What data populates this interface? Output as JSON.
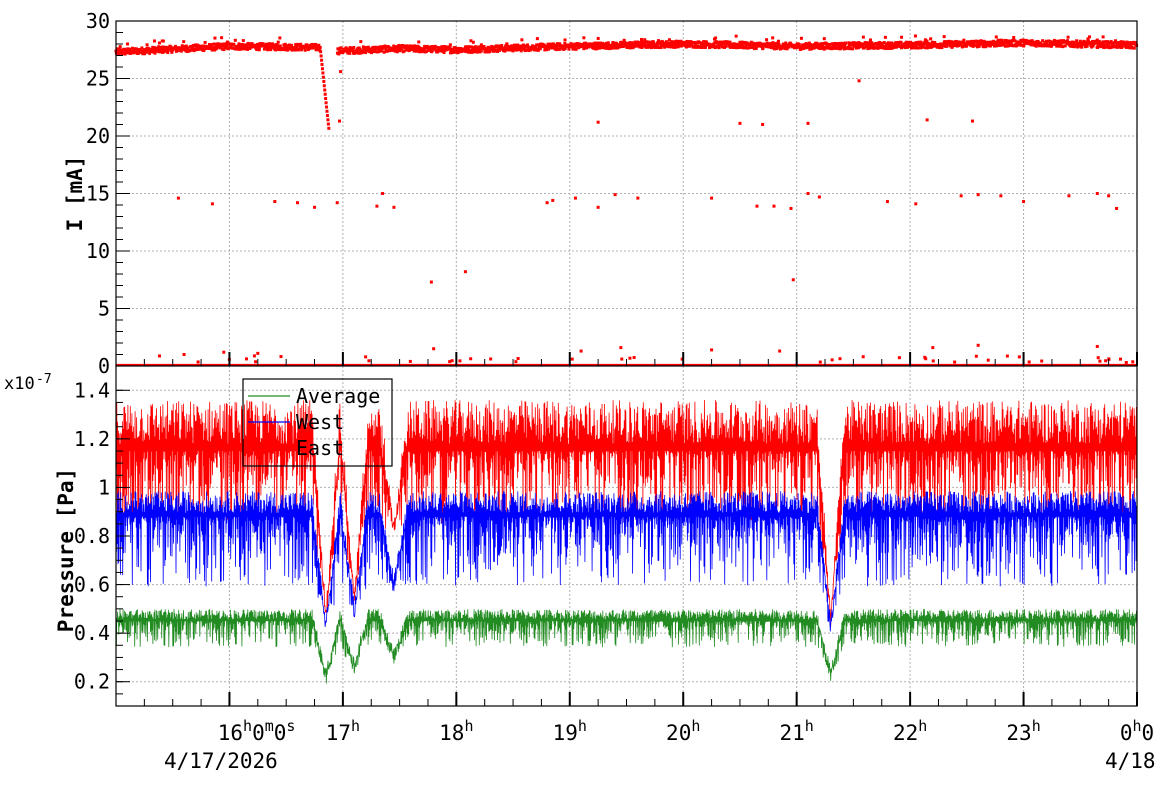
{
  "chart_data": [
    {
      "type": "scatter",
      "title": "",
      "xlabel": "",
      "ylabel": "I [mA]",
      "ylim": [
        0,
        30
      ],
      "yticks": [
        0,
        5,
        10,
        15,
        20,
        25,
        30
      ],
      "xlim_hours": [
        15.0,
        24.0
      ],
      "grid": true,
      "series": [
        {
          "color": "#ff0000",
          "baseline_points": [
            [
              15.0,
              27.3
            ],
            [
              16.0,
              27.8
            ],
            [
              16.8,
              27.7
            ],
            [
              16.88,
              20.3
            ],
            [
              16.95,
              27.4
            ],
            [
              17.5,
              27.6
            ],
            [
              18.0,
              27.5
            ],
            [
              19.0,
              27.8
            ],
            [
              20.0,
              28.0
            ],
            [
              21.0,
              27.8
            ],
            [
              22.0,
              27.9
            ],
            [
              23.0,
              28.1
            ],
            [
              24.0,
              27.9
            ]
          ],
          "outlier_points": [
            [
              15.55,
              14.6
            ],
            [
              15.85,
              14.1
            ],
            [
              16.4,
              14.3
            ],
            [
              16.6,
              14.2
            ],
            [
              16.75,
              13.8
            ],
            [
              16.95,
              14.2
            ],
            [
              17.3,
              13.9
            ],
            [
              17.35,
              15.0
            ],
            [
              17.45,
              13.8
            ],
            [
              18.8,
              14.2
            ],
            [
              18.85,
              14.4
            ],
            [
              19.05,
              14.6
            ],
            [
              19.25,
              13.8
            ],
            [
              19.4,
              14.9
            ],
            [
              19.6,
              14.6
            ],
            [
              20.25,
              14.6
            ],
            [
              20.65,
              13.9
            ],
            [
              20.8,
              13.9
            ],
            [
              20.95,
              13.7
            ],
            [
              21.1,
              15.0
            ],
            [
              21.2,
              14.7
            ],
            [
              21.8,
              14.3
            ],
            [
              22.05,
              14.1
            ],
            [
              22.45,
              14.8
            ],
            [
              22.6,
              14.9
            ],
            [
              22.8,
              14.8
            ],
            [
              23.0,
              14.3
            ],
            [
              23.4,
              14.8
            ],
            [
              23.65,
              15.0
            ],
            [
              23.75,
              14.8
            ],
            [
              23.82,
              13.7
            ],
            [
              16.97,
              21.3
            ],
            [
              19.25,
              21.2
            ],
            [
              20.5,
              21.1
            ],
            [
              20.7,
              21.0
            ],
            [
              21.1,
              21.1
            ],
            [
              22.15,
              21.4
            ],
            [
              22.55,
              21.3
            ],
            [
              16.98,
              25.6
            ],
            [
              21.55,
              24.8
            ],
            [
              17.78,
              7.3
            ],
            [
              18.08,
              8.2
            ],
            [
              20.97,
              7.5
            ],
            [
              15.6,
              1.0
            ],
            [
              15.95,
              1.2
            ],
            [
              16.25,
              1.1
            ],
            [
              17.8,
              1.5
            ],
            [
              19.1,
              1.3
            ],
            [
              19.45,
              1.6
            ],
            [
              20.25,
              1.4
            ],
            [
              20.85,
              1.3
            ],
            [
              22.2,
              1.6
            ],
            [
              22.6,
              1.8
            ],
            [
              23.65,
              1.7
            ]
          ]
        }
      ]
    },
    {
      "type": "line",
      "title": "",
      "xlabel": "",
      "ylabel": "Pressure [Pa]",
      "y_multiplier": "x10",
      "y_multiplier_exp": "-7",
      "ylim": [
        0.1,
        1.5
      ],
      "yticks": [
        0.2,
        0.4,
        0.6,
        0.8,
        1.0,
        1.2,
        1.4
      ],
      "ytick_labels": [
        "0.2",
        "0.4",
        "0.6",
        "0.8",
        "1",
        "1.2",
        "1.4"
      ],
      "xlim_hours": [
        15.0,
        24.0
      ],
      "grid": true,
      "legend_position": "top-left",
      "series": [
        {
          "name": "Average",
          "color": "#228b22",
          "mean": 0.45,
          "lo": 0.36,
          "hi": 0.52,
          "dips": [
            [
              16.85,
              0.18
            ],
            [
              17.1,
              0.22
            ],
            [
              17.45,
              0.26
            ],
            [
              21.3,
              0.19
            ]
          ]
        },
        {
          "name": "West",
          "color": "#0000ff",
          "mean": 0.88,
          "lo": 0.64,
          "hi": 1.03,
          "dips": [
            [
              16.85,
              0.38
            ],
            [
              17.1,
              0.45
            ],
            [
              17.45,
              0.56
            ],
            [
              21.3,
              0.39
            ]
          ]
        },
        {
          "name": "East",
          "color": "#ff0000",
          "mean": 1.15,
          "lo": 0.9,
          "hi": 1.45,
          "dips": [
            [
              16.85,
              0.42
            ],
            [
              17.1,
              0.5
            ],
            [
              17.45,
              0.78
            ],
            [
              21.3,
              0.42
            ]
          ]
        }
      ]
    }
  ],
  "x_axis": {
    "ticks_hours": [
      16,
      17,
      18,
      19,
      20,
      21,
      22,
      23,
      24
    ],
    "tick_labels": [
      {
        "h": "16",
        "sup": "h",
        "mid": "0",
        "sup2": "m",
        "tail": "0",
        "sup3": "s"
      },
      {
        "h": "17",
        "sup": "h"
      },
      {
        "h": "18",
        "sup": "h"
      },
      {
        "h": "19",
        "sup": "h"
      },
      {
        "h": "20",
        "sup": "h"
      },
      {
        "h": "21",
        "sup": "h"
      },
      {
        "h": "22",
        "sup": "h"
      },
      {
        "h": "23",
        "sup": "h"
      },
      {
        "h": "0",
        "sup": "h",
        "mid": "0"
      }
    ],
    "date_left": "4/17/2026",
    "date_right": "4/18"
  }
}
